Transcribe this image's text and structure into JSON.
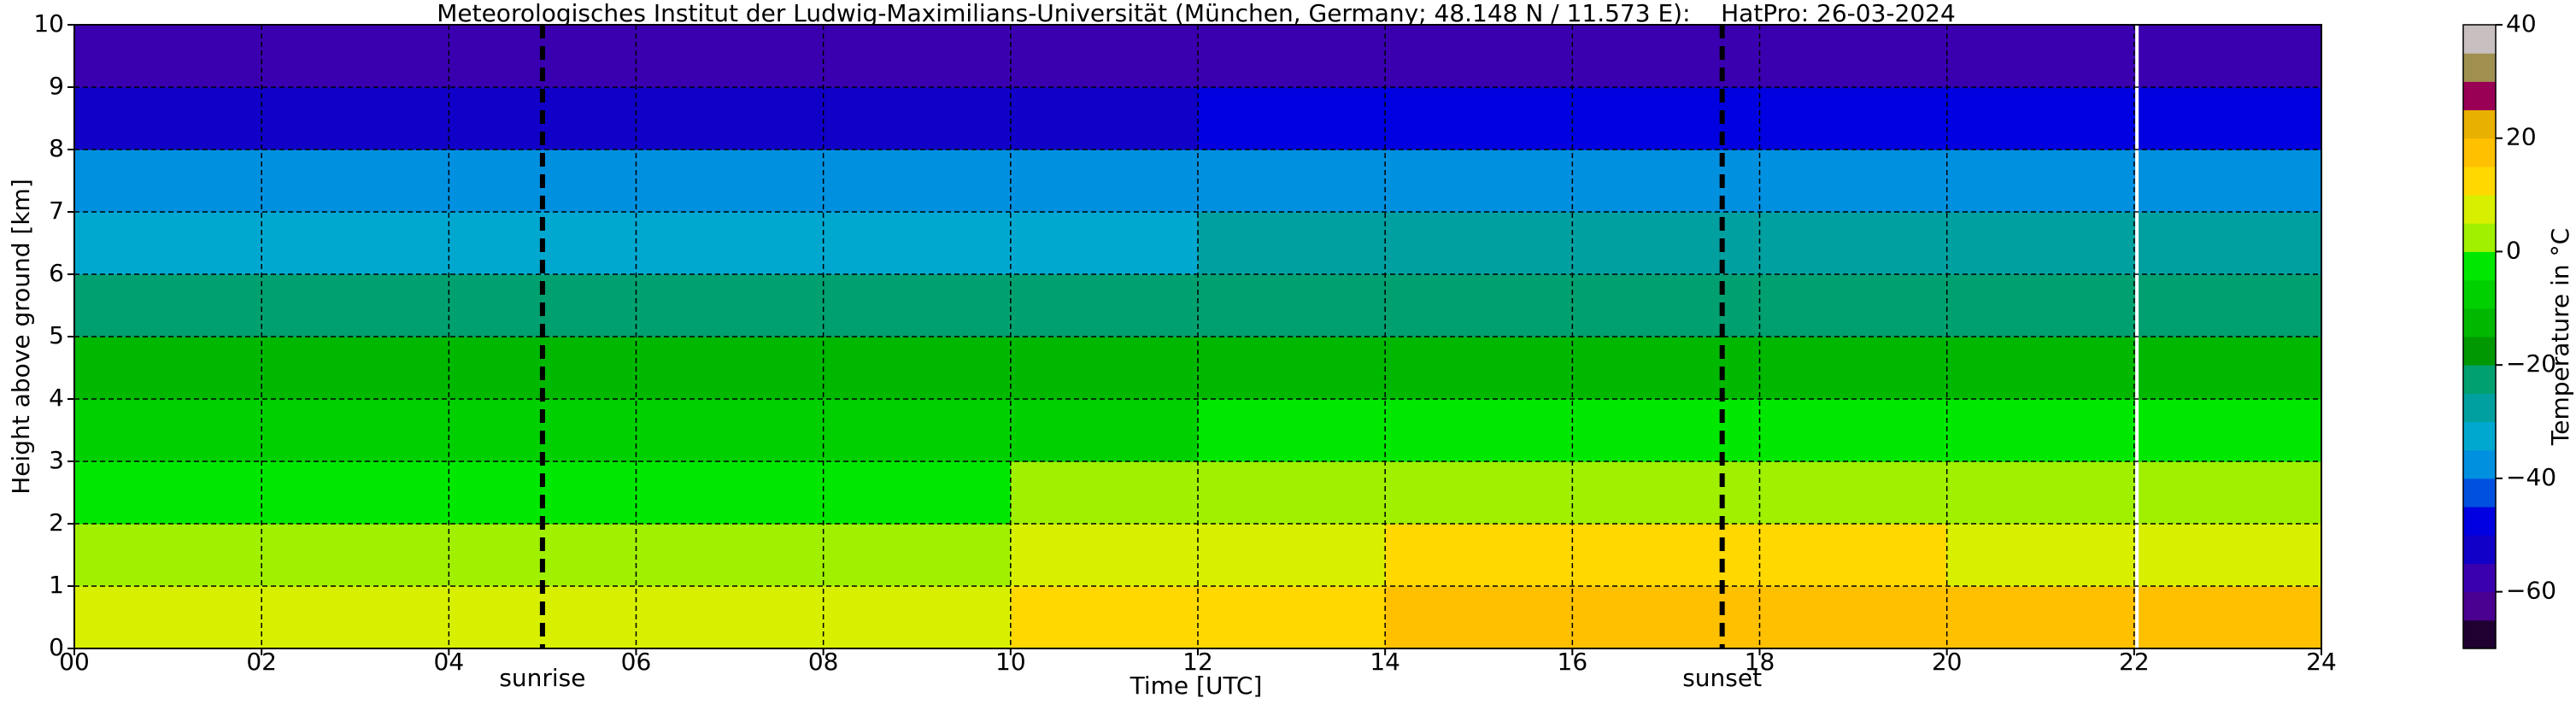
{
  "chart_data": {
    "type": "heatmap",
    "title": "Meteorologisches Institut der Ludwig-Maximilians-Universität (München, Germany; 48.148 N / 11.573 E):    HatPro: 26-03-2024",
    "x_label": "Time [UTC]",
    "y_label": "Height above ground [km]",
    "colorbar_label": "Temperature in °C",
    "x_edges": [
      0,
      2,
      4,
      6,
      8,
      10,
      12,
      14,
      16,
      18,
      20,
      22,
      24
    ],
    "y_edges": [
      0,
      1,
      2,
      3,
      4,
      5,
      6,
      7,
      8,
      9,
      10
    ],
    "values": [
      [
        8,
        7,
        7,
        8,
        9,
        12,
        14,
        15,
        15,
        15,
        15,
        15
      ],
      [
        4,
        4,
        3,
        4,
        4,
        7,
        9,
        10,
        10,
        10,
        9,
        9
      ],
      [
        -1,
        -1,
        -1,
        -1,
        -1,
        1,
        2,
        3,
        3,
        3,
        2,
        2
      ],
      [
        -7,
        -7,
        -7,
        -7,
        -7,
        -6,
        -5,
        -4,
        -4,
        -4,
        -5,
        -5
      ],
      [
        -14,
        -14,
        -14,
        -14,
        -14,
        -13,
        -13,
        -12,
        -12,
        -13,
        -13,
        -13
      ],
      [
        -22,
        -22,
        -22,
        -22,
        -22,
        -22,
        -21,
        -21,
        -21,
        -21,
        -21,
        -21
      ],
      [
        -31,
        -31,
        -31,
        -31,
        -31,
        -31,
        -30,
        -30,
        -29,
        -30,
        -30,
        -30
      ],
      [
        -40,
        -40,
        -40,
        -40,
        -40,
        -40,
        -39,
        -39,
        -38,
        -39,
        -40,
        -40
      ],
      [
        -51,
        -51,
        -51,
        -51,
        -51,
        -51,
        -50,
        -50,
        -50,
        -50,
        -50,
        -50
      ],
      [
        -58,
        -58,
        -58,
        -58,
        -58,
        -58,
        -57,
        -57,
        -57,
        -57,
        -57,
        -57
      ]
    ],
    "xlim": [
      0,
      24
    ],
    "xticks": [
      {
        "value": 0,
        "label": "00"
      },
      {
        "value": 2,
        "label": "02"
      },
      {
        "value": 4,
        "label": "04"
      },
      {
        "value": 6,
        "label": "06"
      },
      {
        "value": 8,
        "label": "08"
      },
      10,
      12,
      14,
      16,
      18,
      20,
      22,
      24
    ],
    "ylim": [
      0,
      10
    ],
    "yticks": [
      0,
      1,
      2,
      3,
      4,
      5,
      6,
      7,
      8,
      9,
      10
    ],
    "clim": [
      -70,
      40
    ],
    "cticks": [
      {
        "value": -60,
        "label": "−60"
      },
      {
        "value": -40,
        "label": "−40"
      },
      {
        "value": -20,
        "label": "−20"
      },
      0,
      20,
      40
    ],
    "colormap": [
      "#200030",
      "#4a0090",
      "#3a00b0",
      "#1000c8",
      "#0000e0",
      "#0050e0",
      "#0090e0",
      "#00a8d0",
      "#00a0a0",
      "#00a070",
      "#009800",
      "#00b800",
      "#00d000",
      "#00e800",
      "#a0f000",
      "#d8f000",
      "#ffd800",
      "#ffc000",
      "#e8b000",
      "#990055",
      "#a09050",
      "#c8c0c0"
    ],
    "grid": true,
    "annotations": [
      {
        "x": 5.0,
        "label": "sunrise"
      },
      {
        "x": 17.6,
        "label": "sunset"
      }
    ],
    "data_gaps": [
      22.03
    ]
  }
}
